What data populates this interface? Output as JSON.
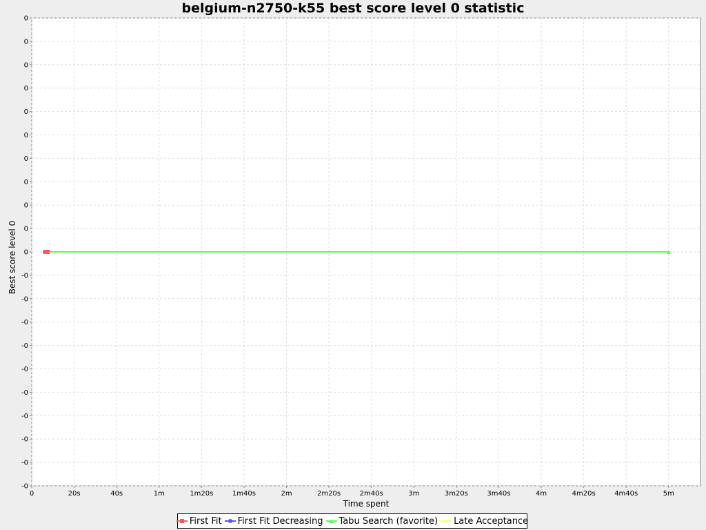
{
  "chart_data": {
    "type": "line",
    "title": "belgium-n2750-k55 best score level 0 statistic",
    "xlabel": "Time spent",
    "ylabel": "Best score level 0",
    "x_tick_labels": [
      "0",
      "20s",
      "40s",
      "1m",
      "1m20s",
      "1m40s",
      "2m",
      "2m20s",
      "2m40s",
      "3m",
      "3m20s",
      "3m40s",
      "4m",
      "4m20s",
      "4m40s",
      "5m"
    ],
    "x_tick_values": [
      0,
      20,
      40,
      60,
      80,
      100,
      120,
      140,
      160,
      180,
      200,
      220,
      240,
      260,
      280,
      300
    ],
    "xlim": [
      0,
      315
    ],
    "y_tick_labels": [
      "0",
      "0",
      "0",
      "0",
      "0",
      "0",
      "0",
      "0",
      "0",
      "0",
      "0",
      "-0",
      "-0",
      "-0",
      "-0",
      "-0",
      "-0",
      "-0",
      "-0",
      "-0",
      "-0"
    ],
    "y_tick_values": [
      0.5,
      0.45,
      0.4,
      0.35,
      0.3,
      0.25,
      0.2,
      0.15,
      0.1,
      0.05,
      0,
      -0.05,
      -0.1,
      -0.15,
      -0.2,
      -0.25,
      -0.3,
      -0.35,
      -0.4,
      -0.45,
      -0.5
    ],
    "ylim": [
      -0.5,
      0.5
    ],
    "grid": true,
    "legend_position": "bottom",
    "series": [
      {
        "name": "First Fit",
        "color": "#ff5555",
        "marker": "square",
        "x": [
          6.5,
          7.5
        ],
        "y": [
          0,
          0
        ]
      },
      {
        "name": "First Fit Decreasing",
        "color": "#5555ff",
        "marker": "circle",
        "x": [
          6.2,
          6.8
        ],
        "y": [
          0,
          0
        ]
      },
      {
        "name": "Tabu Search (favorite)",
        "color": "#55ff55",
        "marker": "triangle",
        "x": [
          6.5,
          300
        ],
        "y": [
          0,
          0
        ]
      },
      {
        "name": "Late Acceptance",
        "color": "#ffff55",
        "marker": "none",
        "x": [],
        "y": []
      }
    ]
  }
}
